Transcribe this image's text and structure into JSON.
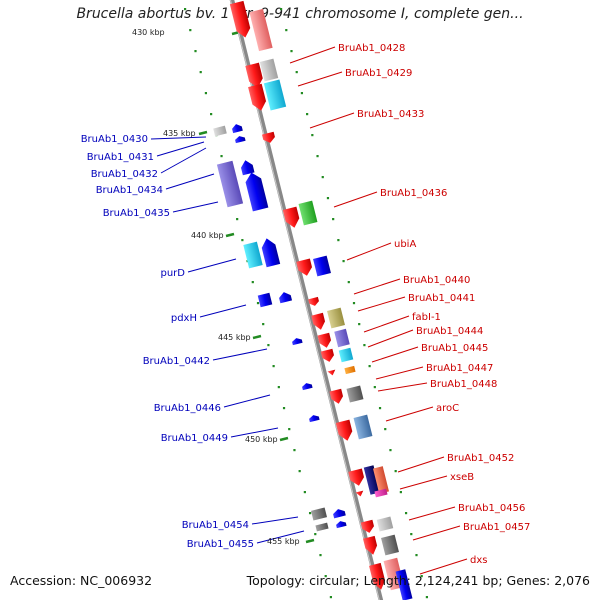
{
  "title": "Brucella abortus bv. 1 str. 9-941 chromosome I, complete gen...",
  "footer": {
    "accession": "Accession: NC_006932",
    "topology": "Topology: circular; Length: 2,124,241 bp; Genes: 2,076"
  },
  "colors": {
    "forward_label": "#cc0000",
    "reverse_label": "#0000bb",
    "backbone": "#888888",
    "tick": "#228b22"
  },
  "ticks": [
    {
      "label": "430 kbp"
    },
    {
      "label": "435 kbp"
    },
    {
      "label": "440 kbp"
    },
    {
      "label": "445 kbp"
    },
    {
      "label": "450 kbp"
    },
    {
      "label": "455 kbp"
    }
  ],
  "forward_genes": [
    {
      "name": "BruAb1_0428"
    },
    {
      "name": "BruAb1_0429"
    },
    {
      "name": "BruAb1_0433"
    },
    {
      "name": "BruAb1_0436"
    },
    {
      "name": "ubiA"
    },
    {
      "name": "BruAb1_0440"
    },
    {
      "name": "BruAb1_0441"
    },
    {
      "name": "fabI-1"
    },
    {
      "name": "BruAb1_0444"
    },
    {
      "name": "BruAb1_0445"
    },
    {
      "name": "BruAb1_0447"
    },
    {
      "name": "BruAb1_0448"
    },
    {
      "name": "aroC"
    },
    {
      "name": "BruAb1_0452"
    },
    {
      "name": "xseB"
    },
    {
      "name": "BruAb1_0456"
    },
    {
      "name": "BruAb1_0457"
    },
    {
      "name": "dxs"
    }
  ],
  "reverse_genes": [
    {
      "name": "BruAb1_0430"
    },
    {
      "name": "BruAb1_0431"
    },
    {
      "name": "BruAb1_0432"
    },
    {
      "name": "BruAb1_0434"
    },
    {
      "name": "BruAb1_0435"
    },
    {
      "name": "purD"
    },
    {
      "name": "pdxH"
    },
    {
      "name": "BruAb1_0442"
    },
    {
      "name": "BruAb1_0446"
    },
    {
      "name": "BruAb1_0449"
    },
    {
      "name": "BruAb1_0454"
    },
    {
      "name": "BruAb1_0455"
    }
  ]
}
